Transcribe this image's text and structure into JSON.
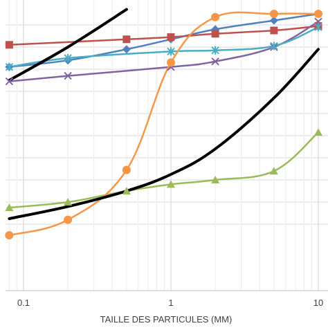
{
  "chart_data": {
    "type": "line",
    "title": "",
    "xlabel": "TAILLE DES PARTICULES (MM)",
    "ylabel": "",
    "x_scale": "log",
    "xlim": [
      0.08,
      11
    ],
    "ylim": [
      0,
      100
    ],
    "x_ticks": [
      {
        "value": 0.1,
        "label": "0.1"
      },
      {
        "value": 1,
        "label": "1"
      },
      {
        "value": 10,
        "label": "10"
      }
    ],
    "y_gridlines": [
      5,
      15,
      25,
      35,
      45,
      55,
      65,
      75,
      85,
      95
    ],
    "grid": true,
    "legend": "none",
    "series": [
      {
        "color": "#4f81bd",
        "marker": "diamond",
        "x": [
          0.08,
          0.2,
          0.5,
          1,
          2,
          5,
          10
        ],
        "y": [
          76,
          79,
          84,
          88.5,
          93,
          97,
          100
        ]
      },
      {
        "color": "#c0504d",
        "marker": "square",
        "x": [
          0.08,
          0.5,
          1,
          2,
          5,
          10
        ],
        "y": [
          86,
          88.5,
          89.5,
          91,
          92.5,
          94.5
        ]
      },
      {
        "color": "#8064a2",
        "marker": "x",
        "x": [
          0.08,
          0.2,
          1,
          2,
          5,
          10
        ],
        "y": [
          69.5,
          72,
          76,
          78.5,
          85,
          96.5
        ]
      },
      {
        "color": "#4bacc6",
        "marker": "star",
        "x": [
          0.08,
          0.2,
          1,
          2,
          5,
          10
        ],
        "y": [
          76,
          80,
          83,
          83.5,
          85.5,
          94
        ]
      },
      {
        "color": "#9bbb59",
        "marker": "triangle",
        "x": [
          0.08,
          0.2,
          0.5,
          1,
          2,
          5,
          10
        ],
        "y": [
          12.5,
          15,
          20,
          23,
          25,
          29,
          46.5
        ]
      },
      {
        "color": "#f79646",
        "marker": "circle",
        "x": [
          0.08,
          0.2,
          0.5,
          1,
          2,
          5,
          10
        ],
        "y": [
          0,
          7,
          29.5,
          78,
          98.5,
          100,
          100
        ]
      },
      {
        "color": "#000000",
        "marker": "none",
        "x": [
          0.08,
          0.2,
          0.5,
          1,
          2,
          5,
          10
        ],
        "y": [
          7.5,
          13,
          20,
          27.5,
          39,
          62,
          84
        ]
      },
      {
        "color": "#000000",
        "marker": "none",
        "x": [
          0.08,
          0.2,
          0.5
        ],
        "y": [
          70,
          85,
          102
        ]
      }
    ]
  }
}
